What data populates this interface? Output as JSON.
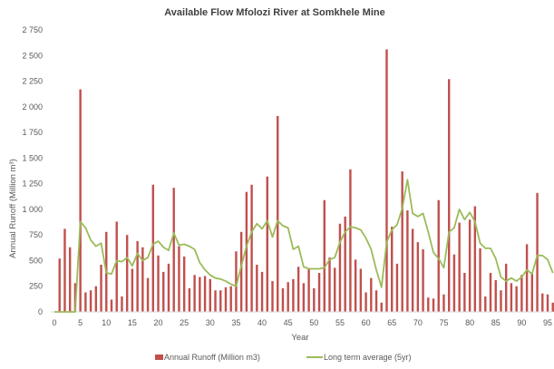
{
  "chart_data": {
    "type": "bar",
    "title": "Available Flow Mfolozi River at Somkhele Mine",
    "xlabel": "Year",
    "ylabel": "Annual Runoff (Million m³)",
    "ylim": [
      0,
      2750
    ],
    "yticks": [
      "0",
      "250",
      "500",
      "750",
      "1 000",
      "1 250",
      "1 500",
      "1 750",
      "2 000",
      "2 250",
      "2 500",
      "2 750"
    ],
    "ytick_values": [
      0,
      250,
      500,
      750,
      1000,
      1250,
      1500,
      1750,
      2000,
      2250,
      2500,
      2750
    ],
    "xticks": [
      0,
      5,
      10,
      15,
      20,
      25,
      30,
      35,
      40,
      45,
      50,
      55,
      60,
      65,
      70,
      75,
      80,
      85,
      90,
      95
    ],
    "xlim": [
      0,
      95
    ],
    "grid": false,
    "legend_position": "bottom",
    "series": [
      {
        "name": "Annual Runoff (Million m3)",
        "kind": "bar",
        "color": "#c0504d",
        "values": [
          0,
          520,
          810,
          630,
          280,
          2170,
          190,
          210,
          250,
          460,
          780,
          120,
          880,
          150,
          750,
          420,
          690,
          630,
          330,
          1240,
          550,
          390,
          470,
          1210,
          640,
          540,
          230,
          360,
          340,
          350,
          320,
          210,
          210,
          240,
          250,
          590,
          780,
          1170,
          1240,
          460,
          390,
          1320,
          300,
          1910,
          230,
          290,
          320,
          440,
          280,
          420,
          230,
          380,
          1090,
          530,
          430,
          860,
          930,
          1390,
          510,
          420,
          190,
          330,
          210,
          90,
          2560,
          830,
          470,
          1370,
          990,
          810,
          680,
          610,
          140,
          130,
          1090,
          170,
          2270,
          560,
          870,
          380,
          900,
          1030,
          620,
          150,
          380,
          310,
          210,
          470,
          280,
          250,
          360,
          660,
          380,
          1160,
          180,
          170,
          90
        ]
      },
      {
        "name": "Long term average (5yr)",
        "kind": "line",
        "color": "#9bbb59",
        "x": [
          0,
          1,
          2,
          3,
          4,
          5,
          6,
          7,
          8,
          9,
          10,
          11,
          12,
          13,
          14,
          15,
          16,
          17,
          18,
          19,
          20,
          21,
          22,
          23,
          24,
          25,
          26,
          27,
          28,
          29,
          30,
          31,
          32,
          33,
          34,
          35,
          36,
          37,
          38,
          39,
          40,
          41,
          42,
          43,
          44,
          45,
          46,
          47,
          48,
          49,
          50,
          51,
          52,
          53,
          54,
          55,
          56,
          57,
          58,
          59,
          60,
          61,
          62,
          63,
          64,
          65,
          66,
          67,
          68,
          69,
          70,
          71,
          72,
          73,
          74,
          75,
          76,
          77,
          78,
          79,
          80,
          81,
          82,
          83,
          84,
          85,
          86,
          87,
          88,
          89,
          90,
          91,
          92,
          93,
          94,
          95,
          96
        ],
        "values": [
          0,
          0,
          0,
          0,
          0,
          880,
          820,
          700,
          640,
          670,
          380,
          370,
          500,
          490,
          530,
          450,
          570,
          500,
          530,
          660,
          690,
          630,
          600,
          770,
          650,
          660,
          640,
          610,
          480,
          410,
          360,
          330,
          320,
          300,
          270,
          250,
          450,
          640,
          780,
          860,
          810,
          890,
          730,
          890,
          840,
          820,
          610,
          640,
          440,
          420,
          420,
          420,
          430,
          510,
          530,
          680,
          780,
          830,
          820,
          800,
          720,
          610,
          410,
          240,
          680,
          800,
          850,
          1010,
          1290,
          960,
          930,
          960,
          780,
          580,
          520,
          430,
          780,
          820,
          1000,
          900,
          970,
          880,
          670,
          620,
          620,
          520,
          340,
          300,
          330,
          300,
          340,
          410,
          370,
          550,
          550,
          510,
          380
        ]
      }
    ]
  }
}
